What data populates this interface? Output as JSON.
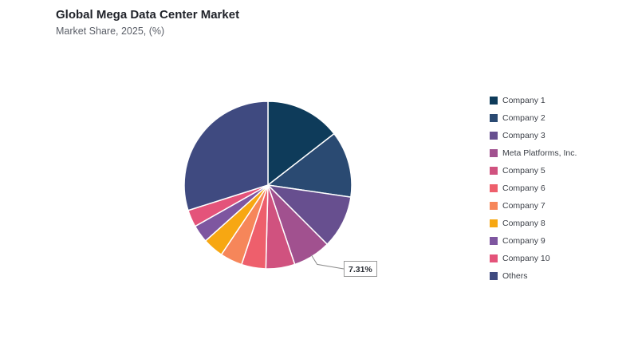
{
  "header": {
    "title": "Global Mega Data Center Market",
    "subtitle": "Market Share, 2025, (%)"
  },
  "colors": {
    "company_1": "#0e3b5a",
    "company_2": "#2a4a72",
    "company_3": "#674f8f",
    "meta": "#a1518f",
    "company_5": "#d0527f",
    "company_6": "#ee5f6c",
    "company_7": "#f6865a",
    "company_8": "#f7a712",
    "company_9": "#7e56a0",
    "company_10": "#e4537a",
    "others": "#3f4a80"
  },
  "chart_data": {
    "type": "pie",
    "title": "Global Mega Data Center Market",
    "subtitle": "Market Share, 2025, (%)",
    "legend_position": "right",
    "slices": [
      {
        "label": "Company 1",
        "value": 14.5,
        "color": "#0e3b5a"
      },
      {
        "label": "Company 2",
        "value": 12.8,
        "color": "#2a4a72"
      },
      {
        "label": "Company 3",
        "value": 10.2,
        "color": "#674f8f"
      },
      {
        "label": "Meta Platforms, Inc.",
        "value": 7.31,
        "color": "#a1518f"
      },
      {
        "label": "Company 5",
        "value": 5.6,
        "color": "#d0527f"
      },
      {
        "label": "Company 6",
        "value": 4.7,
        "color": "#ee5f6c"
      },
      {
        "label": "Company 7",
        "value": 4.3,
        "color": "#f6865a"
      },
      {
        "label": "Company 8",
        "value": 4.0,
        "color": "#f7a712"
      },
      {
        "label": "Company 9",
        "value": 3.4,
        "color": "#7e56a0"
      },
      {
        "label": "Company 10",
        "value": 3.3,
        "color": "#e4537a"
      },
      {
        "label": "Others",
        "value": 29.89,
        "color": "#3f4a80"
      }
    ],
    "data_labels": [
      {
        "slice": "Meta Platforms, Inc.",
        "text": "7.31%"
      }
    ]
  }
}
